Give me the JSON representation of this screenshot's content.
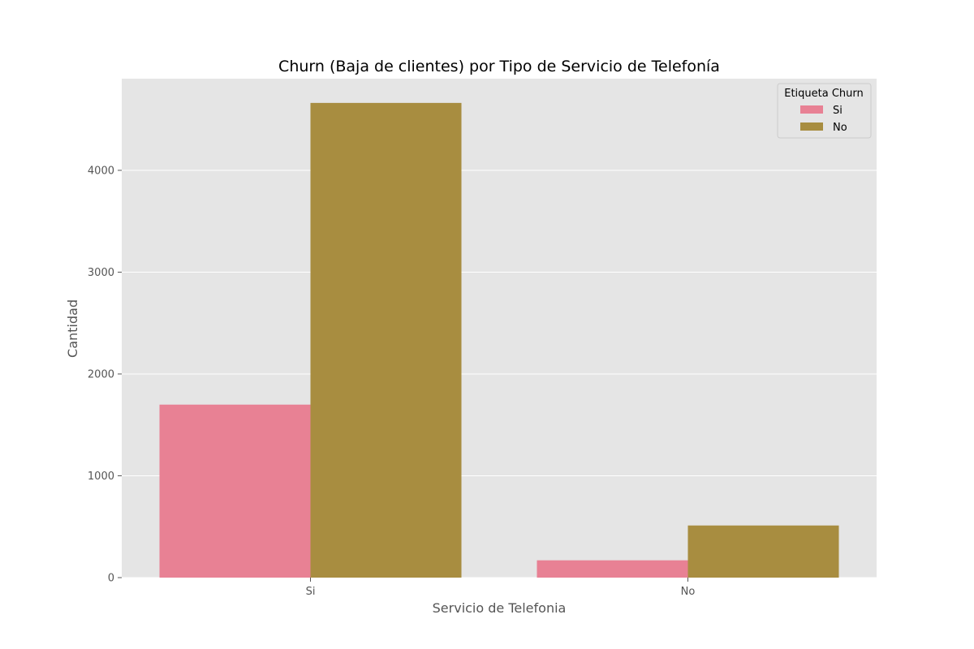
{
  "chart_data": {
    "type": "bar",
    "title": "Churn (Baja de clientes) por Tipo de Servicio de Telefonía",
    "xlabel": "Servicio de Telefonia",
    "ylabel": "Cantidad",
    "categories": [
      "Si",
      "No"
    ],
    "series": [
      {
        "name": "Si",
        "values": [
          1699,
          170
        ],
        "color": "#e88194"
      },
      {
        "name": "No",
        "values": [
          4662,
          512
        ],
        "color": "#a88d40"
      }
    ],
    "ylim": [
      0,
      4900
    ],
    "yticks": [
      0,
      1000,
      2000,
      3000,
      4000
    ],
    "grid": true,
    "legend": {
      "title": "Etiqueta Churn",
      "position": "top-right"
    },
    "colors": {
      "plot_background": "#e5e5e5",
      "grid": "#ffffff"
    }
  }
}
